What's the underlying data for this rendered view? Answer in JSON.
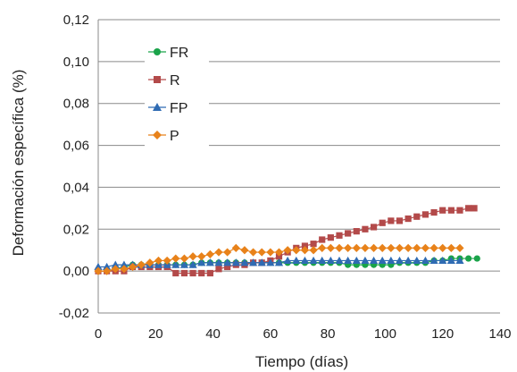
{
  "chart_data": {
    "type": "scatter",
    "title": "",
    "xlabel": "Tiempo (días)",
    "ylabel": "Deformación específica (%)",
    "xlim": [
      0,
      140
    ],
    "ylim": [
      -0.02,
      0.12
    ],
    "x_ticks": [
      "0",
      "20",
      "40",
      "60",
      "80",
      "100",
      "120",
      "140"
    ],
    "y_ticks": [
      "-0,02",
      "0,00",
      "0,02",
      "0,04",
      "0,06",
      "0,08",
      "0,10",
      "0,12"
    ],
    "grid": "horizontal",
    "legend_position": "top-left",
    "series": [
      {
        "name": "FR",
        "color": "#1aa34a",
        "marker": "circle",
        "points": [
          [
            0,
            0.0
          ],
          [
            3,
            0.0
          ],
          [
            6,
            0.001
          ],
          [
            9,
            0.002
          ],
          [
            12,
            0.003
          ],
          [
            15,
            0.003
          ],
          [
            18,
            0.003
          ],
          [
            21,
            0.003
          ],
          [
            24,
            0.003
          ],
          [
            27,
            0.003
          ],
          [
            30,
            0.003
          ],
          [
            33,
            0.003
          ],
          [
            36,
            0.004
          ],
          [
            39,
            0.004
          ],
          [
            42,
            0.004
          ],
          [
            45,
            0.004
          ],
          [
            48,
            0.004
          ],
          [
            51,
            0.004
          ],
          [
            54,
            0.004
          ],
          [
            57,
            0.004
          ],
          [
            60,
            0.004
          ],
          [
            63,
            0.004
          ],
          [
            66,
            0.004
          ],
          [
            69,
            0.004
          ],
          [
            72,
            0.004
          ],
          [
            75,
            0.004
          ],
          [
            78,
            0.004
          ],
          [
            81,
            0.004
          ],
          [
            84,
            0.004
          ],
          [
            87,
            0.003
          ],
          [
            90,
            0.003
          ],
          [
            93,
            0.003
          ],
          [
            96,
            0.003
          ],
          [
            99,
            0.003
          ],
          [
            102,
            0.003
          ],
          [
            105,
            0.004
          ],
          [
            108,
            0.004
          ],
          [
            111,
            0.004
          ],
          [
            114,
            0.004
          ],
          [
            117,
            0.005
          ],
          [
            120,
            0.005
          ],
          [
            123,
            0.006
          ],
          [
            126,
            0.006
          ],
          [
            129,
            0.006
          ],
          [
            132,
            0.006
          ]
        ]
      },
      {
        "name": "R",
        "color": "#b34a4a",
        "marker": "square",
        "points": [
          [
            0,
            0.0
          ],
          [
            3,
            0.0
          ],
          [
            6,
            0.0
          ],
          [
            9,
            0.0
          ],
          [
            12,
            0.002
          ],
          [
            15,
            0.002
          ],
          [
            18,
            0.002
          ],
          [
            21,
            0.002
          ],
          [
            24,
            0.002
          ],
          [
            27,
            -0.001
          ],
          [
            30,
            -0.001
          ],
          [
            33,
            -0.001
          ],
          [
            36,
            -0.001
          ],
          [
            39,
            -0.001
          ],
          [
            42,
            0.001
          ],
          [
            45,
            0.002
          ],
          [
            48,
            0.003
          ],
          [
            51,
            0.003
          ],
          [
            54,
            0.004
          ],
          [
            57,
            0.004
          ],
          [
            60,
            0.005
          ],
          [
            63,
            0.007
          ],
          [
            66,
            0.009
          ],
          [
            69,
            0.011
          ],
          [
            72,
            0.012
          ],
          [
            75,
            0.013
          ],
          [
            78,
            0.015
          ],
          [
            81,
            0.016
          ],
          [
            84,
            0.017
          ],
          [
            87,
            0.018
          ],
          [
            90,
            0.019
          ],
          [
            93,
            0.02
          ],
          [
            96,
            0.021
          ],
          [
            99,
            0.023
          ],
          [
            102,
            0.024
          ],
          [
            105,
            0.024
          ],
          [
            108,
            0.025
          ],
          [
            111,
            0.026
          ],
          [
            114,
            0.027
          ],
          [
            117,
            0.028
          ],
          [
            120,
            0.029
          ],
          [
            123,
            0.029
          ],
          [
            126,
            0.029
          ],
          [
            129,
            0.03
          ],
          [
            131,
            0.03
          ]
        ]
      },
      {
        "name": "FP",
        "color": "#2f6bb3",
        "marker": "triangle",
        "points": [
          [
            0,
            0.002
          ],
          [
            3,
            0.002
          ],
          [
            6,
            0.003
          ],
          [
            9,
            0.003
          ],
          [
            12,
            0.003
          ],
          [
            15,
            0.003
          ],
          [
            18,
            0.003
          ],
          [
            21,
            0.003
          ],
          [
            24,
            0.003
          ],
          [
            27,
            0.003
          ],
          [
            30,
            0.003
          ],
          [
            33,
            0.003
          ],
          [
            36,
            0.004
          ],
          [
            39,
            0.004
          ],
          [
            42,
            0.004
          ],
          [
            45,
            0.004
          ],
          [
            48,
            0.004
          ],
          [
            51,
            0.004
          ],
          [
            54,
            0.004
          ],
          [
            57,
            0.004
          ],
          [
            60,
            0.004
          ],
          [
            63,
            0.004
          ],
          [
            66,
            0.005
          ],
          [
            69,
            0.005
          ],
          [
            72,
            0.005
          ],
          [
            75,
            0.005
          ],
          [
            78,
            0.005
          ],
          [
            81,
            0.005
          ],
          [
            84,
            0.005
          ],
          [
            87,
            0.005
          ],
          [
            90,
            0.005
          ],
          [
            93,
            0.005
          ],
          [
            96,
            0.005
          ],
          [
            99,
            0.005
          ],
          [
            102,
            0.005
          ],
          [
            105,
            0.005
          ],
          [
            108,
            0.005
          ],
          [
            111,
            0.005
          ],
          [
            114,
            0.005
          ],
          [
            117,
            0.005
          ],
          [
            120,
            0.005
          ],
          [
            123,
            0.005
          ],
          [
            126,
            0.005
          ]
        ]
      },
      {
        "name": "P",
        "color": "#e8821a",
        "marker": "diamond",
        "points": [
          [
            0,
            0.0
          ],
          [
            3,
            0.0
          ],
          [
            6,
            0.001
          ],
          [
            9,
            0.001
          ],
          [
            12,
            0.002
          ],
          [
            15,
            0.003
          ],
          [
            18,
            0.004
          ],
          [
            21,
            0.005
          ],
          [
            24,
            0.005
          ],
          [
            27,
            0.006
          ],
          [
            30,
            0.006
          ],
          [
            33,
            0.007
          ],
          [
            36,
            0.007
          ],
          [
            39,
            0.008
          ],
          [
            42,
            0.009
          ],
          [
            45,
            0.009
          ],
          [
            48,
            0.011
          ],
          [
            51,
            0.01
          ],
          [
            54,
            0.009
          ],
          [
            57,
            0.009
          ],
          [
            60,
            0.009
          ],
          [
            63,
            0.009
          ],
          [
            66,
            0.01
          ],
          [
            69,
            0.01
          ],
          [
            72,
            0.01
          ],
          [
            75,
            0.01
          ],
          [
            78,
            0.011
          ],
          [
            81,
            0.011
          ],
          [
            84,
            0.011
          ],
          [
            87,
            0.011
          ],
          [
            90,
            0.011
          ],
          [
            93,
            0.011
          ],
          [
            96,
            0.011
          ],
          [
            99,
            0.011
          ],
          [
            102,
            0.011
          ],
          [
            105,
            0.011
          ],
          [
            108,
            0.011
          ],
          [
            111,
            0.011
          ],
          [
            114,
            0.011
          ],
          [
            117,
            0.011
          ],
          [
            120,
            0.011
          ],
          [
            123,
            0.011
          ],
          [
            126,
            0.011
          ]
        ]
      }
    ]
  }
}
